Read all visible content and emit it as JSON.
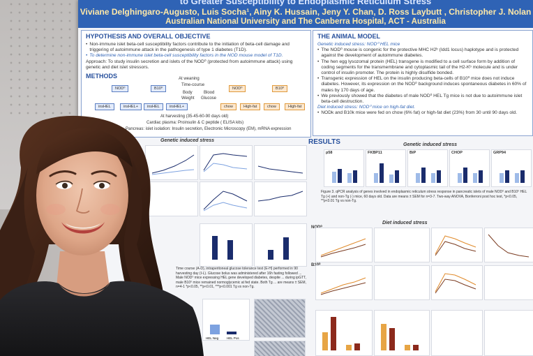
{
  "poster": {
    "title": "to Greater Susceptibility to Endoplasmic Reticulum Stress",
    "authors": "Viviane Delghingaro-Augusto, Luis Socha¹, Ainy K. Hussain, Jeny Y. Chan, D. Ross Laybutt , Christopher J. Nolan",
    "institutions": "Australian National University and The Canberra Hospital, ACT - Australia"
  },
  "hypothesis": {
    "heading": "HYPOTHESIS AND OVERALL OBJECTIVE",
    "bullet1": "Non-immune islet beta-cell susceptibility factors contribute to the initiation of beta-cell damage and triggering of autoimmune attack in the pathogenesis of type 1 diabetes (T1D).",
    "bullet2": "To determine non-immune islet beta-cell susceptibility factors in the NOD mouse model of T1D.",
    "approach": "Approach: To study insulin secretion and islets of the NOD⁰ (protected from autoimmune attack) using genetic and diet islet stressors."
  },
  "methods": {
    "heading": "METHODS",
    "node_nod": "NOD⁰",
    "node_b10": "B10⁰",
    "node_ins1": "insHEL",
    "node_ins2": "insHEL+",
    "node_ins3": "insHEL",
    "node_ins4": "insHEL+",
    "node_chow1": "chow",
    "node_hf1": "High-fat",
    "node_chow2": "chow",
    "node_hf2": "High-fat",
    "at_weaning": "At weaning",
    "time_course": "Time-course",
    "body": "Body",
    "blood": "Blood",
    "weight": "Weight",
    "glucose": "Glucose",
    "at_harvest": "At harvesting (35-45-60-90 days old)",
    "plasma": "Cardiac plasma: Proinsulin & C peptide ( ELISA kits)",
    "pancreas": "Pancreas: islet isolation: Insulin secretion, Electronic Microscopy (EM), mRNA expression"
  },
  "animal_model": {
    "heading": "THE ANIMAL MODEL",
    "sub1": "Genetic induced stress: NOD⁰ HEL mice",
    "p1": "The NOD⁰ mouse is congenic for the protective MHC H2ᵇ (Idd1 locus) haplotype and is protected against the development of autoimmune diabetes.",
    "p2": "The hen egg lysozomal protein (HEL) transgene is modified to a cell surface form by addition of coding segments for the transmembrane and cytoplasmic tail of the H2-Kᵇ molecule and is under control of insulin promoter. The protein is highly disulfide bonded.",
    "p3": "Transgenic expression of HEL on the insulin producing beta-cells of B10⁰ mice does not induce diabetes. However, its expression on the NOD⁰ background induces spontaneous diabetes in 60% of males by 170 days of age.",
    "p4": "We previously showed that the diabetes of male NOD⁰ HEL Tg mice is not due to autoimmune islet beta-cell destruction.",
    "sub2": "Diet induced stress: NOD⁰ mice on high-fat diet.",
    "p5": "NODk and B10k mice were fed on chow (6% fat) or high-fat diet (23%) from 30 until 90 days old."
  },
  "results": {
    "heading": "RESULTS",
    "genetic": "Genetic induced stress",
    "genetic2": "Genetic induced stress",
    "diet": "Diet induced stress",
    "fig3": "Figure 3. qPCR analysis of genes involved in endoplasmic reticulum stress response in pancreatic islets of male NOD⁰ and B10⁰ HEL Tg (+) and non-Tg (-) mice, 60 days old. Data are means ± SEM for n=3-7. Two-way ANOVA, Bonferroni post hoc test, *p<0.05, **p<0.01 Tg vs non-Tg.",
    "fig_left": "Time course (A-D), intraperitoneal glucose tolerance test (E-H) performed in 90 harvesting day (I-L). Glucose bolus was administered after 16h fasting followed ... Male NOD⁰ mice expressing HEL gene developed diabetes, despite ... during ipGTT, male B10⁰ mice remained normoglycemic at fed state. Both Tg ... are means ± SEM, n=4-1 *p<0.05, **p<0.01, ***p<0.001 Tg vs non-Tg.",
    "genes": [
      "p58",
      "FKBP11",
      "BiP",
      "CHOP",
      "GRP94"
    ],
    "nod_tag": "NOD⁰",
    "b10_tag": "B10⁰",
    "legend_chow": "Chow",
    "legend_hf": "HF",
    "days_old": "Days old",
    "time_min": "Time (min)",
    "hel_neg": "HEL Neg",
    "hel_pos": "HEL Pos"
  }
}
